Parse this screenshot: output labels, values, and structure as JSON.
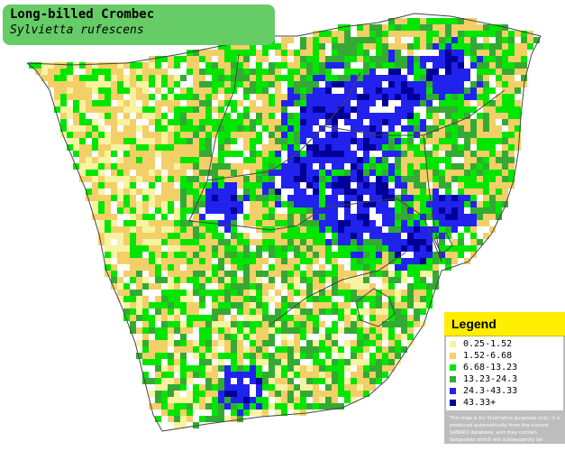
{
  "title": {
    "common_name": "Long-billed Crombec",
    "scientific_name": "Sylvietta rufescens"
  },
  "legend": {
    "heading": "Legend",
    "entries": [
      {
        "label": "0.25-1.52",
        "color": "#f7f3a1"
      },
      {
        "label": "1.52-6.68",
        "color": "#f3cf68"
      },
      {
        "label": "6.68-13.23",
        "color": "#00e600"
      },
      {
        "label": "13.23-24.3",
        "color": "#33aa33"
      },
      {
        "label": "24.3-43.33",
        "color": "#2222ee"
      },
      {
        "label": "43.33+",
        "color": "#000099"
      }
    ],
    "disclaimer": "This map is for illustrative purposes only; it is produced automatically from the current SABAP2 database, and may contain datapoints which will subsequently be removed during checking operations."
  },
  "colors": {
    "land": "#ffffff",
    "title_bg": "#66cc66",
    "legend_header_bg": "#ffee00",
    "legend_bg": "#bdbdbd",
    "border": "#444444"
  }
}
